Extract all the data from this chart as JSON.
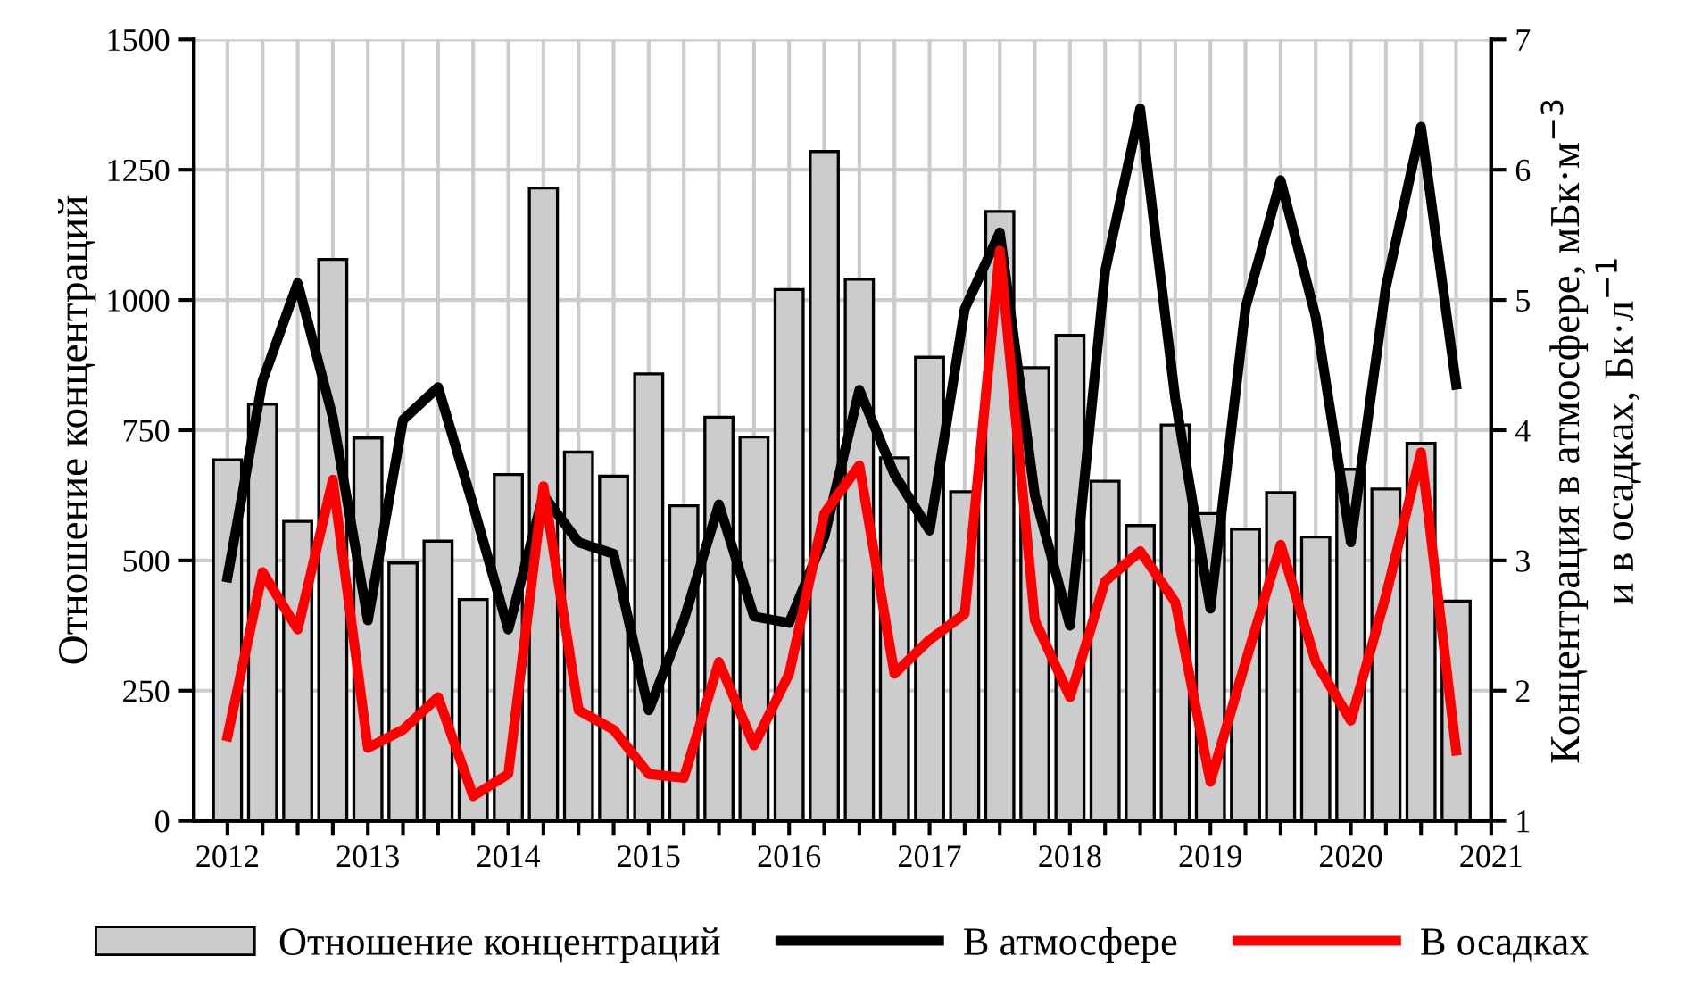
{
  "chart_data": {
    "type": "bar",
    "ylabel": "Отношение концентраций",
    "y2label": "Концентрация в атмосфере, мБк·м$^{−3}$\nи в осадках, Бк·л$^{−1}$",
    "x": [
      2012.0,
      2012.25,
      2012.5,
      2012.75,
      2013.0,
      2013.25,
      2013.5,
      2013.75,
      2014.0,
      2014.25,
      2014.5,
      2014.75,
      2015.0,
      2015.25,
      2015.5,
      2015.75,
      2016.0,
      2016.25,
      2016.5,
      2016.75,
      2017.0,
      2017.25,
      2017.5,
      2017.75,
      2018.0,
      2018.25,
      2018.5,
      2018.75,
      2019.0,
      2019.25,
      2019.5,
      2019.75,
      2020.0,
      2020.25,
      2020.5,
      2020.75
    ],
    "series": [
      {
        "name": "Отношение концентраций",
        "color": "#cccccc",
        "values": [
          693,
          800,
          575,
          1078,
          735,
          495,
          537,
          425,
          665,
          1215,
          708,
          662,
          858,
          605,
          775,
          737,
          1020,
          1285,
          1040,
          697,
          890,
          632,
          1170,
          870,
          932,
          652,
          567,
          760,
          590,
          560,
          630,
          545,
          675,
          637,
          725,
          422
        ]
      },
      {
        "name": "В атмосфере",
        "type": "line",
        "axis": "y2",
        "color": "#000000",
        "values": [
          2.87,
          4.38,
          5.13,
          4.1,
          2.54,
          4.08,
          4.33,
          3.42,
          2.47,
          3.5,
          3.14,
          3.05,
          1.85,
          2.54,
          3.43,
          2.57,
          2.52,
          3.18,
          4.31,
          3.66,
          3.23,
          4.93,
          5.52,
          3.5,
          2.5,
          5.22,
          6.47,
          4.24,
          2.63,
          4.94,
          5.92,
          4.87,
          3.14,
          5.1,
          6.33,
          4.35
        ]
      },
      {
        "name": "В осадках",
        "type": "line",
        "axis": "y2",
        "color": "#ff0000",
        "values": [
          1.65,
          2.91,
          2.47,
          3.62,
          1.56,
          1.7,
          1.95,
          1.19,
          1.36,
          3.57,
          1.85,
          1.7,
          1.36,
          1.33,
          2.22,
          1.58,
          2.13,
          3.36,
          3.73,
          2.13,
          2.39,
          2.59,
          5.38,
          2.54,
          1.95,
          2.84,
          3.07,
          2.68,
          1.3,
          2.22,
          3.12,
          2.22,
          1.77,
          2.73,
          3.83,
          1.54
        ]
      }
    ],
    "xlim": [
      2011.76,
      2021
    ],
    "xticks": [
      2012,
      {
        "value": 2012.25,
        "label": null
      },
      {
        "value": 2012.5,
        "label": null
      },
      {
        "value": 2012.75,
        "label": null
      },
      2013,
      {
        "value": 2013.25,
        "label": null
      },
      {
        "value": 2013.5,
        "label": null
      },
      {
        "value": 2013.75,
        "label": null
      },
      2014,
      {
        "value": 2014.25,
        "label": null
      },
      {
        "value": 2014.5,
        "label": null
      },
      {
        "value": 2014.75,
        "label": null
      },
      2015,
      {
        "value": 2015.25,
        "label": null
      },
      {
        "value": 2015.5,
        "label": null
      },
      {
        "value": 2015.75,
        "label": null
      },
      2016,
      {
        "value": 2016.25,
        "label": null
      },
      {
        "value": 2016.5,
        "label": null
      },
      {
        "value": 2016.75,
        "label": null
      },
      2017,
      {
        "value": 2017.25,
        "label": null
      },
      {
        "value": 2017.5,
        "label": null
      },
      {
        "value": 2017.75,
        "label": null
      },
      2018,
      {
        "value": 2018.25,
        "label": null
      },
      {
        "value": 2018.5,
        "label": null
      },
      {
        "value": 2018.75,
        "label": null
      },
      2019,
      {
        "value": 2019.25,
        "label": null
      },
      {
        "value": 2019.5,
        "label": null
      },
      {
        "value": 2019.75,
        "label": null
      },
      2020,
      {
        "value": 2020.25,
        "label": null
      },
      {
        "value": 2020.5,
        "label": null
      },
      {
        "value": 2020.75,
        "label": null
      },
      2021
    ],
    "ylim": [
      0,
      1500
    ],
    "yticks": [
      0,
      250,
      500,
      750,
      1000,
      1250,
      1500
    ],
    "y2lim": [
      1,
      7
    ],
    "y2ticks": [
      1,
      2,
      3,
      4,
      5,
      6,
      7
    ],
    "grid": true,
    "legend": "bottom",
    "marker": "none",
    "line_style": "solid"
  }
}
